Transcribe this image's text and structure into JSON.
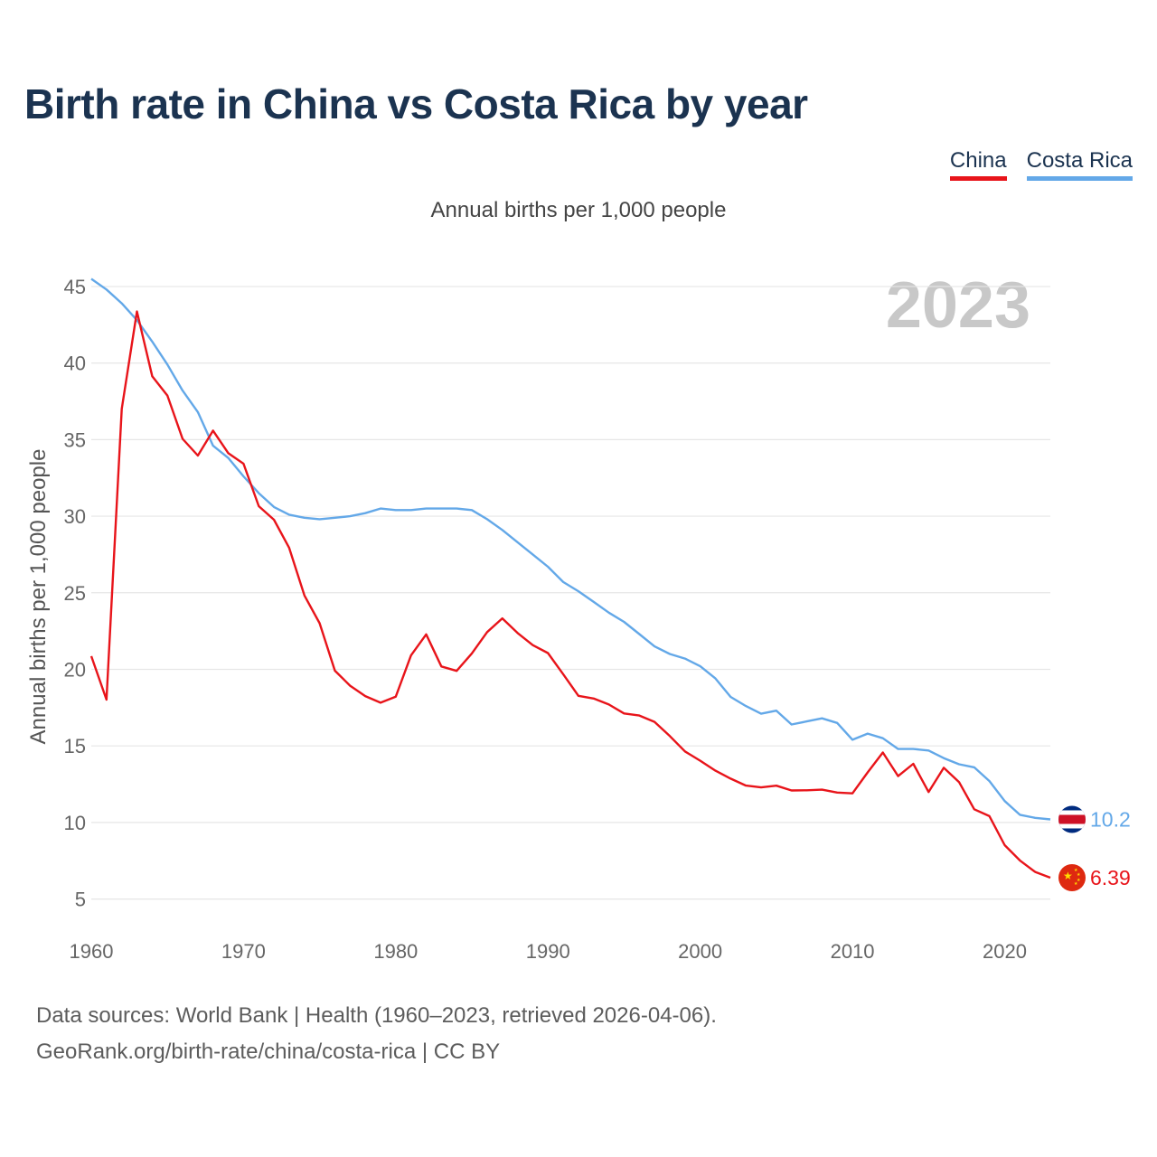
{
  "chart_data": {
    "type": "line",
    "title": "Birth rate in China vs Costa Rica by year",
    "subtitle": "Annual births per 1,000 people",
    "ylabel": "Annual births per 1,000 people",
    "xlabel": "",
    "year_watermark": "2023",
    "ylim": [
      3.5,
      46
    ],
    "xlim": [
      1960,
      2023
    ],
    "y_ticks": [
      5,
      10,
      15,
      20,
      25,
      30,
      35,
      40,
      45
    ],
    "x_ticks": [
      1960,
      1970,
      1980,
      1990,
      2000,
      2010,
      2020
    ],
    "legend_position": "top-right",
    "x": [
      1960,
      1961,
      1962,
      1963,
      1964,
      1965,
      1966,
      1967,
      1968,
      1969,
      1970,
      1971,
      1972,
      1973,
      1974,
      1975,
      1976,
      1977,
      1978,
      1979,
      1980,
      1981,
      1982,
      1983,
      1984,
      1985,
      1986,
      1987,
      1988,
      1989,
      1990,
      1991,
      1992,
      1993,
      1994,
      1995,
      1996,
      1997,
      1998,
      1999,
      2000,
      2001,
      2002,
      2003,
      2004,
      2005,
      2006,
      2007,
      2008,
      2009,
      2010,
      2011,
      2012,
      2013,
      2014,
      2015,
      2016,
      2017,
      2018,
      2019,
      2020,
      2021,
      2022,
      2023
    ],
    "series": [
      {
        "name": "China",
        "color": "#e8141a",
        "end_label": "6.39",
        "flag_icon": "china-flag-icon",
        "values": [
          20.86,
          18.02,
          37.01,
          43.37,
          39.14,
          37.88,
          35.05,
          33.96,
          35.59,
          34.11,
          33.43,
          30.65,
          29.77,
          27.93,
          24.82,
          23.01,
          19.91,
          18.93,
          18.25,
          17.82,
          18.21,
          20.91,
          22.28,
          20.19,
          19.9,
          21.04,
          22.43,
          23.33,
          22.37,
          21.58,
          21.06,
          19.68,
          18.27,
          18.09,
          17.7,
          17.12,
          16.98,
          16.57,
          15.64,
          14.64,
          14.03,
          13.38,
          12.86,
          12.41,
          12.29,
          12.4,
          12.09,
          12.1,
          12.14,
          11.95,
          11.9,
          13.27,
          14.57,
          13.03,
          13.83,
          11.99,
          13.57,
          12.64,
          10.86,
          10.41,
          8.52,
          7.52,
          6.77,
          6.39
        ]
      },
      {
        "name": "Costa Rica",
        "color": "#63a8e8",
        "end_label": "10.2",
        "flag_icon": "costa-rica-flag-icon",
        "values": [
          45.5,
          44.8,
          43.9,
          42.8,
          41.4,
          39.9,
          38.2,
          36.8,
          34.6,
          33.8,
          32.6,
          31.5,
          30.6,
          30.1,
          29.9,
          29.8,
          29.9,
          30.0,
          30.2,
          30.5,
          30.4,
          30.4,
          30.5,
          30.5,
          30.5,
          30.4,
          29.8,
          29.1,
          28.3,
          27.5,
          26.7,
          25.7,
          25.1,
          24.4,
          23.7,
          23.1,
          22.3,
          21.5,
          21.0,
          20.7,
          20.2,
          19.4,
          18.2,
          17.6,
          17.1,
          17.3,
          16.4,
          16.6,
          16.8,
          16.5,
          15.4,
          15.8,
          15.5,
          14.8,
          14.8,
          14.7,
          14.2,
          13.8,
          13.6,
          12.7,
          11.4,
          10.5,
          10.3,
          10.2
        ]
      }
    ]
  },
  "legend": {
    "china": "China",
    "costa_rica": "Costa Rica"
  },
  "footer": {
    "line1": "Data sources: World Bank | Health (1960–2023, retrieved 2026-04-06).",
    "line2": "GeoRank.org/birth-rate/china/costa-rica | CC BY"
  }
}
